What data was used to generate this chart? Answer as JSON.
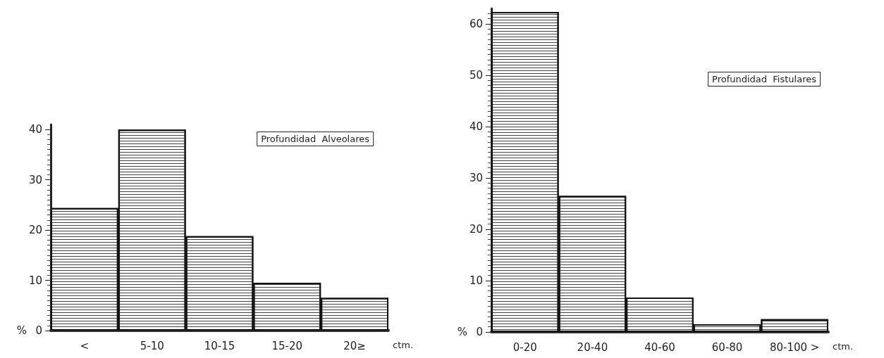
{
  "chart_data": [
    {
      "type": "bar",
      "title": "Profundidad  Alveolares",
      "ylabel": "%",
      "xlabel": "ctm.",
      "categories": [
        "<",
        "5-10",
        "10-15",
        "15-20",
        "20≥"
      ],
      "values": [
        24.4,
        40,
        18.8,
        9.5,
        6.5
      ],
      "color": "#ffffff",
      "ylim": [
        0,
        41
      ],
      "yticks": [
        0,
        10,
        20,
        30,
        40
      ],
      "grid": false
    },
    {
      "type": "bar",
      "title": "Profundidad  Fistulares",
      "ylabel": "%",
      "xlabel": "ctm.",
      "categories": [
        "0-20",
        "20-40",
        "40-60",
        "60-80",
        "80-100 >"
      ],
      "values": [
        62.3,
        26.5,
        6.7,
        1.5,
        2.5
      ],
      "color": "#ffffff",
      "ylim": [
        0,
        63
      ],
      "yticks": [
        0,
        10,
        20,
        30,
        40,
        50,
        60
      ],
      "grid": false
    }
  ]
}
